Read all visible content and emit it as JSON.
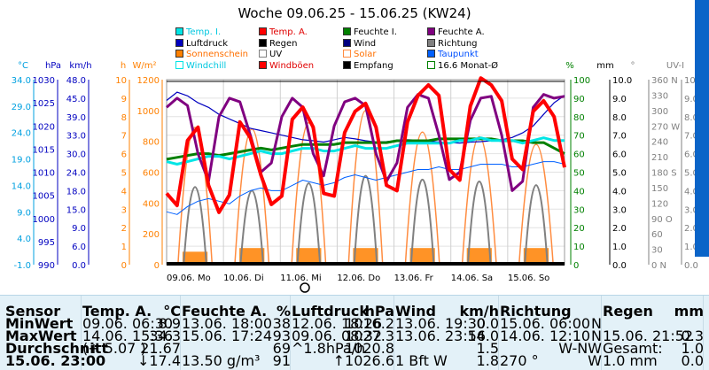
{
  "title": "Woche 09.06.25 - 15.06.25 (KW24)",
  "colors": {
    "temp_i": "#00e5e5",
    "temp_a": "#ff0000",
    "feuchte_i": "#008000",
    "feuchte_a": "#800080",
    "luftdruck": "#0000c0",
    "regen": "#000000",
    "wind": "#000080",
    "richtung": "#808080",
    "sonnenschein": "#ff8000",
    "uv": "#808080",
    "solar": "#ff8c40",
    "taupunkt": "#0060ff",
    "windchill": "#00e5e5",
    "windboeen": "#ff0000",
    "empfang": "#000000"
  },
  "legend": [
    {
      "label": "Temp. I.",
      "color": "#00e5e5",
      "style": "box"
    },
    {
      "label": "Temp. A.",
      "color": "#ff0000",
      "style": "box"
    },
    {
      "label": "Feuchte I.",
      "color": "#008000",
      "style": "box"
    },
    {
      "label": "Feuchte A.",
      "color": "#800080",
      "style": "box"
    },
    {
      "label": "Luftdruck",
      "color": "#0000c0",
      "style": "box"
    },
    {
      "label": "Regen",
      "color": "#000000",
      "style": "box"
    },
    {
      "label": "Wind",
      "color": "#000080",
      "style": "box"
    },
    {
      "label": "Richtung",
      "color": "#808080",
      "style": "box"
    },
    {
      "label": "Sonnenschein",
      "color": "#ff8000",
      "style": "box"
    },
    {
      "label": "UV",
      "color": "#808080",
      "style": "outline"
    },
    {
      "label": "Solar",
      "color": "#ff8c40",
      "style": "outline"
    },
    {
      "label": "Taupunkt",
      "color": "#0060ff",
      "style": "box"
    },
    {
      "label": "Windchill",
      "color": "#00e5e5",
      "style": "outline"
    },
    {
      "label": "Windböen",
      "color": "#ff0000",
      "style": "box"
    },
    {
      "label": "Empfang",
      "color": "#000000",
      "style": "box"
    },
    {
      "label": "16.6 Monat-Ø",
      "color": "#008000",
      "style": "outline"
    }
  ],
  "chart_data": {
    "type": "line",
    "title": "Woche 09.06.25 - 15.06.25 (KW24)",
    "x_labels": [
      "09.06. Mo",
      "10.06. Di",
      "11.06. Mi",
      "12.06. Do",
      "13.06. Fr",
      "14.06. Sa",
      "15.06. So"
    ],
    "axes": [
      {
        "unit": "°C",
        "color": "#00a0e0",
        "ticks": [
          "34.0",
          "29.0",
          "24.0",
          "19.0",
          "14.0",
          "9.0",
          "4.0",
          "-1.0"
        ],
        "range": [
          -1,
          34
        ]
      },
      {
        "unit": "hPa",
        "color": "#0000c0",
        "ticks": [
          "1030",
          "1025",
          "1020",
          "1015",
          "1010",
          "1005",
          "1000",
          "995",
          "990"
        ],
        "range": [
          990,
          1030
        ]
      },
      {
        "unit": "km/h",
        "color": "#0000c0",
        "ticks": [
          "48.0",
          "45.0",
          "39.0",
          "33.0",
          "30.0",
          "24.0",
          "18.0",
          "15.0",
          "9.0",
          "6.0",
          "0.0"
        ],
        "range": [
          0,
          48
        ]
      },
      {
        "unit": "h",
        "color": "#ff8000",
        "ticks": [
          "10",
          "9",
          "8",
          "7",
          "6",
          "5",
          "4",
          "3",
          "2",
          "1",
          "0"
        ],
        "range": [
          0,
          10
        ]
      },
      {
        "unit": "W/m²",
        "color": "#ff8000",
        "ticks": [
          "1200",
          "1000",
          "800",
          "600",
          "400",
          "200",
          "0"
        ],
        "range": [
          0,
          1200
        ]
      },
      {
        "unit": "%",
        "color": "#008000",
        "ticks": [
          "100",
          "90",
          "80",
          "70",
          "60",
          "50",
          "40",
          "30",
          "20",
          "10",
          "0"
        ],
        "range": [
          0,
          100
        ]
      },
      {
        "unit": "mm",
        "color": "#000000",
        "ticks": [
          "10.0",
          "9.0",
          "8.0",
          "7.0",
          "6.0",
          "5.0",
          "4.0",
          "3.0",
          "2.0",
          "1.0",
          "0.0"
        ],
        "range": [
          0,
          10
        ]
      },
      {
        "unit": "°",
        "color": "#808080",
        "ticks": [
          "360 N",
          "330",
          "300",
          "270 W",
          "240",
          "210",
          "180 S",
          "150",
          "120",
          "90 O",
          "60",
          "30",
          "0 N"
        ],
        "range": [
          0,
          360
        ]
      },
      {
        "unit": "UV-I",
        "color": "#808080",
        "ticks": [
          "10.0",
          "9.0",
          "8.0",
          "7.0",
          "6.0",
          "5.0",
          "4.0",
          "3.0",
          "2.0",
          "1.0",
          "0.0"
        ],
        "range": [
          0,
          10
        ]
      }
    ],
    "series": [
      {
        "name": "Temp. A.",
        "unit": "°C",
        "color": "#ff0000",
        "values": [
          12.5,
          10.2,
          22.5,
          25.0,
          14.0,
          8.9,
          12.2,
          26.0,
          23.0,
          16.0,
          10.4,
          12.0,
          26.5,
          28.8,
          25.0,
          12.5,
          12.0,
          24.0,
          28.0,
          29.5,
          25.0,
          14.0,
          13.0,
          26.0,
          31.0,
          33.0,
          31.0,
          17.0,
          15.0,
          29.0,
          34.3,
          33.0,
          30.0,
          19.0,
          17.0,
          28.0,
          30.0,
          27.0,
          17.4
        ]
      },
      {
        "name": "Feuchte A.",
        "unit": "%",
        "color": "#800080",
        "values": [
          85,
          90,
          86,
          60,
          45,
          80,
          90,
          88,
          70,
          50,
          55,
          80,
          90,
          85,
          60,
          48,
          75,
          88,
          90,
          86,
          60,
          45,
          55,
          85,
          92,
          90,
          70,
          46,
          50,
          78,
          90,
          91,
          70,
          40,
          45,
          85,
          92,
          90,
          91
        ]
      },
      {
        "name": "Luftdruck",
        "unit": "hPa",
        "color": "#0000c0",
        "values": [
          1025.5,
          1027.3,
          1026.5,
          1025.0,
          1024.0,
          1022.5,
          1021.5,
          1020.5,
          1019.5,
          1019.0,
          1018.5,
          1018.0,
          1017.5,
          1017.0,
          1016.8,
          1016.5,
          1017.0,
          1017.5,
          1017.2,
          1016.8,
          1016.5,
          1016.6,
          1016.8,
          1017.0,
          1016.9,
          1016.7,
          1016.5,
          1016.4,
          1016.3,
          1016.5,
          1016.6,
          1016.8,
          1017.0,
          1017.5,
          1018.5,
          1020.0,
          1022.5,
          1025.0,
          1026.6
        ]
      },
      {
        "name": "Temp. I.",
        "unit": "°C",
        "color": "#00e5e5",
        "values": [
          18.5,
          18.0,
          18.5,
          19.0,
          19.5,
          19.5,
          19.0,
          19.5,
          20.0,
          20.5,
          20.0,
          20.0,
          20.5,
          21.0,
          21.0,
          20.5,
          20.5,
          21.0,
          21.5,
          21.0,
          21.0,
          21.0,
          21.5,
          22.0,
          22.0,
          22.0,
          22.0,
          22.0,
          22.5,
          22.5,
          23.0,
          22.5,
          22.5,
          22.5,
          22.0,
          22.5,
          23.0,
          22.5,
          22.5
        ]
      },
      {
        "name": "Feuchte I.",
        "unit": "%",
        "color": "#008000",
        "values": [
          57,
          58,
          59,
          60,
          60,
          59,
          60,
          61,
          62,
          63,
          62,
          63,
          64,
          65,
          65,
          65,
          65,
          66,
          66,
          66,
          66,
          66,
          67,
          67,
          67,
          67,
          68,
          68,
          68,
          68,
          68,
          68,
          67,
          67,
          67,
          66,
          66,
          63,
          60
        ]
      },
      {
        "name": "Taupunkt",
        "unit": "°C",
        "color": "#0060ff",
        "values": [
          9.0,
          8.5,
          10.0,
          11.0,
          11.5,
          11.0,
          10.5,
          12.0,
          13.0,
          13.5,
          13.0,
          13.0,
          14.0,
          15.0,
          14.5,
          14.0,
          14.5,
          15.5,
          16.0,
          15.5,
          15.0,
          15.5,
          16.0,
          16.5,
          17.0,
          17.0,
          17.5,
          17.0,
          17.0,
          17.5,
          18.0,
          18.0,
          18.0,
          17.5,
          17.5,
          18.0,
          18.5,
          18.5,
          18.0
        ]
      },
      {
        "name": "Solar",
        "unit": "W/m²",
        "color": "#ff8c40",
        "peaks": [
          890,
          880,
          920,
          1000,
          860,
          830,
          780
        ]
      },
      {
        "name": "Sonnenschein",
        "unit": "h",
        "color": "#ff8000",
        "values": [
          0.7,
          0.9,
          0.9,
          0.9,
          0.9,
          0.9,
          0.9
        ]
      },
      {
        "name": "UV",
        "unit": "UV-I",
        "color": "#808080",
        "peaks": [
          4.2,
          4.0,
          4.4,
          4.8,
          4.6,
          4.5,
          4.3
        ]
      }
    ],
    "grid": true,
    "legend_position": "top"
  },
  "table": {
    "columns": [
      {
        "name": "Sensor",
        "unit": ""
      },
      {
        "name": "Temp. A.",
        "unit": "°C"
      },
      {
        "name": "Feuchte A.",
        "unit": "%"
      },
      {
        "name": "Luftdruck",
        "unit": "hPa"
      },
      {
        "name": "Wind",
        "unit": "km/h"
      },
      {
        "name": "Richtung",
        "unit": ""
      },
      {
        "name": "Regen",
        "unit": "mm"
      }
    ],
    "rows": [
      {
        "label": "MinWert",
        "cells": [
          [
            "09.06.  06:30",
            "8.9"
          ],
          [
            "13.06.  18:00",
            "38"
          ],
          [
            "12.06.  18:26",
            "1016.2"
          ],
          [
            "13.06.  19:30",
            "0.0"
          ],
          [
            "15.06.  06:00",
            "N"
          ],
          [
            "",
            ""
          ]
        ]
      },
      {
        "label": "MaxWert",
        "cells": [
          [
            "14.06.  15:36",
            "34.3"
          ],
          [
            "15.06.  17:24",
            "93"
          ],
          [
            "09.06.  08:32",
            "1027.3"
          ],
          [
            "13.06.  23:56",
            "14.0"
          ],
          [
            "14.06.  12:10",
            "N"
          ],
          [
            "15.06.  21:52",
            "0.3"
          ]
        ]
      },
      {
        "label": "Durchschnitt",
        "cells": [
          [
            "(+ 5.07 )",
            "21.67"
          ],
          [
            "",
            "69"
          ],
          [
            "^1.8hPa/h",
            "1020.8"
          ],
          [
            "",
            "1.5"
          ],
          [
            "",
            "W-NW"
          ],
          [
            "Gesamt:",
            "1.0"
          ]
        ]
      },
      {
        "label": "15.06. 23:00",
        "cells": [
          [
            "",
            "↓17.4"
          ],
          [
            "13.50 g/m³",
            "91"
          ],
          [
            "",
            "↑1026.6"
          ],
          [
            "1 Bft W",
            "1.8"
          ],
          [
            "270 °",
            "W"
          ],
          [
            "1.0 mm",
            "0.0"
          ]
        ]
      }
    ]
  }
}
